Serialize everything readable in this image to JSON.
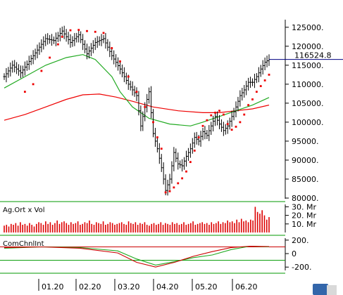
{
  "chart_data": [
    {
      "type": "candlestick",
      "ylim": [
        80000,
        127000
      ],
      "yticks": [
        {
          "value": 125000,
          "label": "125000."
        },
        {
          "value": 120000,
          "label": "120000."
        },
        {
          "value": 115000,
          "label": "115000."
        },
        {
          "value": 110000,
          "label": "110000."
        },
        {
          "value": 105000,
          "label": "105000."
        },
        {
          "value": 100000,
          "label": "100000."
        },
        {
          "value": 95000,
          "label": "95000."
        },
        {
          "value": 90000,
          "label": "90000."
        },
        {
          "value": 85000,
          "label": "85000."
        },
        {
          "value": 80000,
          "label": "80000."
        }
      ],
      "last_value": 116524.8,
      "last_label": "116524.8",
      "x_months": [
        "01.20",
        "02.20",
        "03.20",
        "04.20",
        "05.20",
        "06.20"
      ],
      "price_path": [
        [
          0,
          112000
        ],
        [
          4,
          115000
        ],
        [
          8,
          113000
        ],
        [
          12,
          116000
        ],
        [
          16,
          119000
        ],
        [
          20,
          122000
        ],
        [
          24,
          121500
        ],
        [
          28,
          124000
        ],
        [
          32,
          121000
        ],
        [
          36,
          123000
        ],
        [
          40,
          118000
        ],
        [
          44,
          121000
        ],
        [
          48,
          122000
        ],
        [
          52,
          117500
        ],
        [
          56,
          114000
        ],
        [
          60,
          110000
        ],
        [
          64,
          107000
        ],
        [
          66,
          99000
        ],
        [
          68,
          104000
        ],
        [
          70,
          108000
        ],
        [
          72,
          97000
        ],
        [
          74,
          93000
        ],
        [
          76,
          88000
        ],
        [
          78,
          82000
        ],
        [
          80,
          85000
        ],
        [
          82,
          92000
        ],
        [
          84,
          89000
        ],
        [
          86,
          88500
        ],
        [
          88,
          91000
        ],
        [
          90,
          93000
        ],
        [
          92,
          96000
        ],
        [
          94,
          95000
        ],
        [
          96,
          97500
        ],
        [
          98,
          96500
        ],
        [
          100,
          99000
        ],
        [
          102,
          101500
        ],
        [
          104,
          99500
        ],
        [
          106,
          97800
        ],
        [
          108,
          99000
        ],
        [
          110,
          101500
        ],
        [
          112,
          104000
        ],
        [
          114,
          107000
        ],
        [
          116,
          108500
        ],
        [
          118,
          110500
        ],
        [
          120,
          110500
        ],
        [
          122,
          112000
        ],
        [
          124,
          114000
        ],
        [
          126,
          115800
        ],
        [
          128,
          116524.8
        ]
      ],
      "sar_points": [
        [
          10,
          108000
        ],
        [
          14,
          110000
        ],
        [
          18,
          113500
        ],
        [
          22,
          117000
        ],
        [
          26,
          120500
        ],
        [
          28,
          122500
        ],
        [
          32,
          124200
        ],
        [
          36,
          124300
        ],
        [
          40,
          124000
        ],
        [
          44,
          123800
        ],
        [
          48,
          123500
        ],
        [
          52,
          119500
        ],
        [
          56,
          116000
        ],
        [
          60,
          112000
        ],
        [
          64,
          108000
        ],
        [
          68,
          104000
        ],
        [
          72,
          100000
        ],
        [
          74,
          96000
        ],
        [
          76,
          93000
        ],
        [
          78,
          81500
        ],
        [
          80,
          81800
        ],
        [
          82,
          82800
        ],
        [
          84,
          83900
        ],
        [
          86,
          85200
        ],
        [
          88,
          87000
        ],
        [
          90,
          89500
        ],
        [
          92,
          92500
        ],
        [
          94,
          96000
        ],
        [
          96,
          99000
        ],
        [
          98,
          100500
        ],
        [
          100,
          101800
        ],
        [
          102,
          102500
        ],
        [
          104,
          103000
        ],
        [
          106,
          102000
        ],
        [
          108,
          99500
        ],
        [
          110,
          98000
        ],
        [
          112,
          98800
        ],
        [
          114,
          100000
        ],
        [
          116,
          102000
        ],
        [
          118,
          104500
        ],
        [
          120,
          106000
        ],
        [
          122,
          108000
        ],
        [
          124,
          109500
        ],
        [
          126,
          111000
        ],
        [
          128,
          112500
        ]
      ],
      "ma_short": [
        [
          0,
          109000
        ],
        [
          10,
          112000
        ],
        [
          20,
          115000
        ],
        [
          30,
          117000
        ],
        [
          38,
          117800
        ],
        [
          44,
          116500
        ],
        [
          52,
          112000
        ],
        [
          56,
          108000
        ],
        [
          62,
          104000
        ],
        [
          70,
          101000
        ],
        [
          80,
          99500
        ],
        [
          90,
          99000
        ],
        [
          96,
          100000
        ],
        [
          104,
          101500
        ],
        [
          112,
          103000
        ],
        [
          120,
          104500
        ],
        [
          128,
          106500
        ]
      ],
      "ma_long": [
        [
          0,
          100500
        ],
        [
          10,
          102000
        ],
        [
          20,
          104000
        ],
        [
          30,
          106000
        ],
        [
          38,
          107200
        ],
        [
          46,
          107400
        ],
        [
          54,
          106600
        ],
        [
          62,
          105500
        ],
        [
          72,
          104000
        ],
        [
          84,
          103000
        ],
        [
          96,
          102500
        ],
        [
          104,
          102500
        ],
        [
          112,
          103000
        ],
        [
          120,
          103500
        ],
        [
          128,
          104500
        ]
      ]
    },
    {
      "type": "bar",
      "label": "Ag.Ort x Vol",
      "ylim": [
        0,
        32
      ],
      "yticks": [
        {
          "value": 30,
          "label": "30. Mr"
        },
        {
          "value": 20,
          "label": "20. Mr"
        },
        {
          "value": 10,
          "label": "10. Mr"
        }
      ],
      "values": [
        8,
        9,
        7,
        10,
        9,
        11,
        8,
        12,
        9,
        10,
        8,
        11,
        9,
        7,
        10,
        12,
        11,
        9,
        13,
        10,
        12,
        9,
        11,
        14,
        10,
        12,
        13,
        11,
        9,
        12,
        10,
        11,
        13,
        9,
        10,
        12,
        11,
        14,
        10,
        9,
        12,
        11,
        10,
        13,
        9,
        10,
        12,
        11,
        9,
        10,
        11,
        12,
        10,
        9,
        13,
        11,
        10,
        12,
        9,
        11,
        10,
        12,
        9,
        8,
        10,
        11,
        9,
        10,
        12,
        9,
        11,
        10,
        9,
        12,
        10,
        11,
        9,
        10,
        12,
        9,
        10,
        11,
        13,
        9,
        10,
        11,
        12,
        10,
        11,
        9,
        12,
        10,
        11,
        13,
        10,
        12,
        11,
        14,
        12,
        13,
        11,
        15,
        12,
        16,
        13,
        14,
        12,
        15,
        14,
        30,
        24,
        22,
        26,
        20,
        15,
        18
      ]
    },
    {
      "type": "line",
      "label": "ComChnlInt",
      "ylim": [
        -260,
        230
      ],
      "yticks": [
        {
          "value": 200,
          "label": "200."
        },
        {
          "value": 0,
          "label": "0"
        },
        {
          "value": -200,
          "label": "-200."
        }
      ],
      "reference_lines": [
        100,
        -100
      ],
      "series": [
        {
          "values": [
            [
              0,
              80
            ],
            [
              20,
              100
            ],
            [
              40,
              90
            ],
            [
              60,
              40
            ],
            [
              70,
              -80
            ],
            [
              80,
              -170
            ],
            [
              90,
              -120
            ],
            [
              100,
              -60
            ],
            [
              110,
              -20
            ],
            [
              120,
              60
            ],
            [
              130,
              110
            ],
            [
              140,
              100
            ]
          ]
        },
        {
          "values": [
            [
              0,
              90
            ],
            [
              20,
              100
            ],
            [
              40,
              80
            ],
            [
              60,
              10
            ],
            [
              70,
              -130
            ],
            [
              80,
              -200
            ],
            [
              90,
              -130
            ],
            [
              100,
              -40
            ],
            [
              110,
              30
            ],
            [
              120,
              90
            ],
            [
              130,
              110
            ],
            [
              140,
              105
            ]
          ]
        }
      ]
    }
  ]
}
